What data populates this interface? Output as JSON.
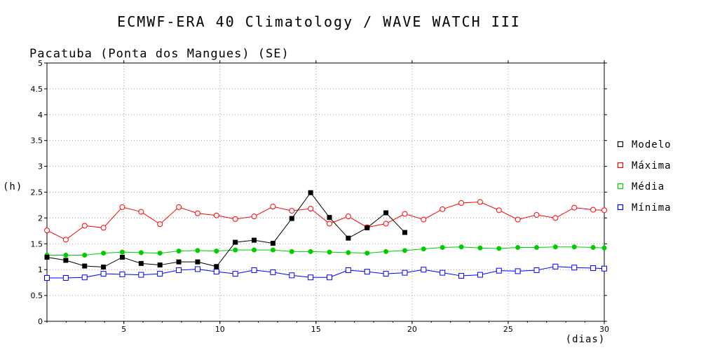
{
  "chart_data": {
    "type": "line",
    "title": "ECMWF-ERA 40 Climatology / WAVE WATCH III",
    "subtitle": "Pacatuba (Ponta dos Mangues) (SE)",
    "xlabel": "(dias)",
    "ylabel": "(h)",
    "xlim": [
      1,
      30
    ],
    "ylim": [
      0,
      5
    ],
    "xticks": [
      5,
      10,
      15,
      20,
      25,
      30
    ],
    "yticks": [
      0,
      0.5,
      1,
      1.5,
      2,
      2.5,
      3,
      3.5,
      4,
      4.5,
      5
    ],
    "grid": true,
    "legend_position": "right",
    "series": [
      {
        "name": "Modelo",
        "color": "#000000",
        "marker": "filled-square",
        "x": [
          1,
          1.98,
          2.96,
          3.94,
          4.92,
          5.9,
          6.88,
          7.86,
          8.84,
          9.82,
          10.8,
          11.78,
          12.76,
          13.74,
          14.72,
          15.7,
          16.68,
          17.66,
          18.64,
          19.62
        ],
        "values": [
          1.24,
          1.18,
          1.07,
          1.05,
          1.24,
          1.12,
          1.09,
          1.15,
          1.15,
          1.06,
          1.53,
          1.57,
          1.51,
          1.99,
          2.49,
          2.01,
          1.61,
          1.81,
          2.1,
          1.72
        ]
      },
      {
        "name": "Máxima",
        "color": "#ff0000",
        "marker": "open-circle",
        "x": [
          1,
          1.98,
          2.96,
          3.94,
          4.92,
          5.9,
          6.88,
          7.86,
          8.84,
          9.82,
          10.8,
          11.78,
          12.76,
          13.74,
          14.72,
          15.7,
          16.68,
          17.66,
          18.64,
          19.62,
          20.6,
          21.58,
          22.56,
          23.54,
          24.52,
          25.5,
          26.48,
          27.46,
          28.44,
          29.42,
          30
        ],
        "values": [
          1.76,
          1.58,
          1.85,
          1.81,
          2.21,
          2.12,
          1.88,
          2.21,
          2.09,
          2.05,
          1.98,
          2.03,
          2.22,
          2.14,
          2.18,
          1.89,
          2.03,
          1.82,
          1.89,
          2.08,
          1.97,
          2.17,
          2.29,
          2.31,
          2.15,
          1.97,
          2.06,
          2.0,
          2.2,
          2.16,
          2.15
        ]
      },
      {
        "name": "Média",
        "color": "#00cc00",
        "marker": "filled-circle",
        "x": [
          1,
          1.98,
          2.96,
          3.94,
          4.92,
          5.9,
          6.88,
          7.86,
          8.84,
          9.82,
          10.8,
          11.78,
          12.76,
          13.74,
          14.72,
          15.7,
          16.68,
          17.66,
          18.64,
          19.62,
          20.6,
          21.58,
          22.56,
          23.54,
          24.52,
          25.5,
          26.48,
          27.46,
          28.44,
          29.42,
          30
        ],
        "values": [
          1.28,
          1.28,
          1.28,
          1.32,
          1.34,
          1.33,
          1.32,
          1.36,
          1.37,
          1.36,
          1.38,
          1.38,
          1.38,
          1.35,
          1.35,
          1.34,
          1.33,
          1.32,
          1.35,
          1.37,
          1.4,
          1.43,
          1.44,
          1.42,
          1.41,
          1.43,
          1.43,
          1.44,
          1.44,
          1.43,
          1.42
        ]
      },
      {
        "name": "Mínima",
        "color": "#0000ff",
        "marker": "open-square",
        "x": [
          1,
          1.98,
          2.96,
          3.94,
          4.92,
          5.9,
          6.88,
          7.86,
          8.84,
          9.82,
          10.8,
          11.78,
          12.76,
          13.74,
          14.72,
          15.7,
          16.68,
          17.66,
          18.64,
          19.62,
          20.6,
          21.58,
          22.56,
          23.54,
          24.52,
          25.5,
          26.48,
          27.46,
          28.44,
          29.42,
          30
        ],
        "values": [
          0.84,
          0.84,
          0.85,
          0.92,
          0.91,
          0.9,
          0.92,
          0.99,
          1.01,
          0.96,
          0.92,
          0.99,
          0.95,
          0.89,
          0.85,
          0.85,
          0.99,
          0.96,
          0.92,
          0.94,
          1.0,
          0.94,
          0.88,
          0.9,
          0.98,
          0.97,
          0.99,
          1.06,
          1.04,
          1.03,
          1.02
        ]
      }
    ]
  }
}
